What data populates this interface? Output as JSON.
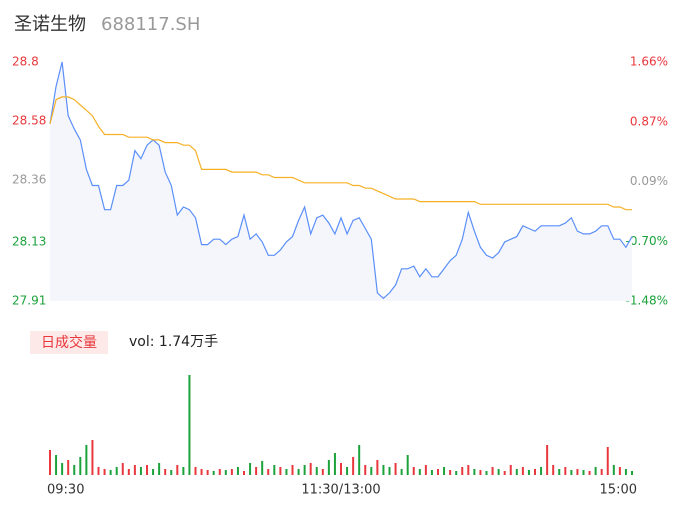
{
  "chart_data": [
    {
      "type": "line",
      "title": "圣诺生物",
      "subtitle": "688117.SH",
      "x": [
        0,
        2.5,
        5,
        7.5,
        10,
        12.5,
        15,
        17.5,
        20,
        22.5,
        25,
        27.5,
        30,
        32.5,
        35,
        37.5,
        40,
        42.5,
        45,
        47.5,
        50,
        52.5,
        55,
        57.5,
        60,
        62.5,
        65,
        67.5,
        70,
        72.5,
        75,
        77.5,
        80,
        82.5,
        85,
        87.5,
        90,
        92.5,
        95,
        97.5,
        100,
        102.5,
        105,
        107.5,
        110,
        112.5,
        115,
        117.5,
        120,
        122.5,
        125,
        127.5,
        130,
        132.5,
        135,
        137.5,
        140,
        142.5,
        145,
        147.5,
        150,
        152.5,
        155,
        157.5,
        160,
        162.5,
        165,
        167.5,
        170,
        172.5,
        175,
        177.5,
        180,
        182.5,
        185,
        187.5,
        190,
        192.5,
        195,
        197.5,
        200,
        202.5,
        205,
        207.5,
        210,
        212.5,
        215,
        217.5,
        220,
        222.5,
        225,
        227.5,
        230,
        232.5,
        235,
        237.5,
        240
      ],
      "series": [
        {
          "name": "price",
          "color": "#5b8ff9",
          "fill": "#f4f6fc",
          "values": [
            28.57,
            28.71,
            28.8,
            28.6,
            28.55,
            28.51,
            28.4,
            28.34,
            28.34,
            28.25,
            28.25,
            28.34,
            28.34,
            28.36,
            28.47,
            28.44,
            28.49,
            28.51,
            28.49,
            28.39,
            28.34,
            28.23,
            28.26,
            28.25,
            28.22,
            28.12,
            28.12,
            28.14,
            28.14,
            28.12,
            28.14,
            28.15,
            28.23,
            28.14,
            28.16,
            28.13,
            28.08,
            28.08,
            28.1,
            28.13,
            28.15,
            28.21,
            28.26,
            28.16,
            28.22,
            28.23,
            28.2,
            28.16,
            28.22,
            28.16,
            28.21,
            28.22,
            28.18,
            28.14,
            27.94,
            27.92,
            27.94,
            27.97,
            28.03,
            28.03,
            28.04,
            28.0,
            28.03,
            28.0,
            28.0,
            28.03,
            28.06,
            28.08,
            28.14,
            28.24,
            28.17,
            28.11,
            28.08,
            28.07,
            28.09,
            28.13,
            28.14,
            28.15,
            28.19,
            28.18,
            28.17,
            28.19,
            28.19,
            28.19,
            28.19,
            28.2,
            28.22,
            28.17,
            28.16,
            28.16,
            28.17,
            28.19,
            28.19,
            28.14,
            28.14,
            28.11,
            28.15
          ]
        },
        {
          "name": "average",
          "color": "#f6b026",
          "values": [
            28.57,
            28.66,
            28.67,
            28.67,
            28.66,
            28.64,
            28.62,
            28.6,
            28.56,
            28.53,
            28.53,
            28.53,
            28.53,
            28.52,
            28.52,
            28.52,
            28.52,
            28.51,
            28.51,
            28.5,
            28.5,
            28.5,
            28.49,
            28.49,
            28.47,
            28.4,
            28.4,
            28.4,
            28.4,
            28.4,
            28.39,
            28.39,
            28.39,
            28.39,
            28.39,
            28.38,
            28.38,
            28.37,
            28.37,
            28.37,
            28.37,
            28.36,
            28.35,
            28.35,
            28.35,
            28.35,
            28.35,
            28.35,
            28.35,
            28.35,
            28.34,
            28.34,
            28.33,
            28.33,
            28.32,
            28.31,
            28.3,
            28.29,
            28.29,
            28.29,
            28.29,
            28.28,
            28.28,
            28.28,
            28.28,
            28.28,
            28.28,
            28.28,
            28.28,
            28.28,
            28.28,
            28.27,
            28.27,
            28.27,
            28.27,
            28.27,
            28.27,
            28.27,
            28.27,
            28.27,
            28.27,
            28.27,
            28.27,
            28.27,
            28.27,
            28.27,
            28.27,
            28.27,
            28.27,
            28.27,
            28.27,
            28.27,
            28.27,
            28.26,
            28.26,
            28.25,
            28.25
          ]
        }
      ],
      "xlim": [
        0,
        240
      ],
      "ylim": [
        27.91,
        28.8
      ],
      "yticks": [
        28.8,
        28.58,
        28.36,
        28.13,
        27.91
      ],
      "y2lim": [
        -1.48,
        1.66
      ],
      "y2ticks": [
        {
          "value": 1.66,
          "label": "1.66%"
        },
        {
          "value": 0.87,
          "label": "0.87%"
        },
        {
          "value": 0.09,
          "label": "0.09%"
        },
        {
          "value": -0.7,
          "label": "-0.70%"
        },
        {
          "value": -1.48,
          "label": "-1.48%"
        }
      ],
      "up_color": "#e8383d",
      "down_color": "#1ca23b",
      "flat_color": "#999999",
      "grid": false
    },
    {
      "type": "bar",
      "title": "日成交量",
      "annotation": "vol: 1.74万手",
      "x": [
        0,
        2.5,
        5,
        7.5,
        10,
        12.5,
        15,
        17.5,
        20,
        22.5,
        25,
        27.5,
        30,
        32.5,
        35,
        37.5,
        40,
        42.5,
        45,
        47.5,
        50,
        52.5,
        55,
        57.5,
        60,
        62.5,
        65,
        67.5,
        70,
        72.5,
        75,
        77.5,
        80,
        82.5,
        85,
        87.5,
        90,
        92.5,
        95,
        97.5,
        100,
        102.5,
        105,
        107.5,
        110,
        112.5,
        115,
        117.5,
        120,
        122.5,
        125,
        127.5,
        130,
        132.5,
        135,
        137.5,
        140,
        142.5,
        145,
        147.5,
        150,
        152.5,
        155,
        157.5,
        160,
        162.5,
        165,
        167.5,
        170,
        172.5,
        175,
        177.5,
        180,
        182.5,
        185,
        187.5,
        190,
        192.5,
        195,
        197.5,
        200,
        202.5,
        205,
        207.5,
        210,
        212.5,
        215,
        217.5,
        220,
        222.5,
        225,
        227.5,
        230,
        232.5,
        235,
        237.5,
        240
      ],
      "values": [
        25,
        20,
        12,
        15,
        10,
        18,
        30,
        35,
        8,
        6,
        5,
        8,
        12,
        6,
        10,
        8,
        10,
        6,
        12,
        6,
        5,
        10,
        8,
        100,
        8,
        6,
        5,
        4,
        6,
        5,
        6,
        8,
        4,
        12,
        8,
        14,
        6,
        10,
        8,
        6,
        10,
        6,
        10,
        12,
        8,
        6,
        15,
        22,
        12,
        8,
        18,
        30,
        10,
        8,
        15,
        10,
        8,
        12,
        6,
        20,
        8,
        6,
        10,
        5,
        6,
        8,
        5,
        4,
        8,
        10,
        6,
        5,
        4,
        8,
        6,
        4,
        10,
        6,
        8,
        5,
        6,
        8,
        30,
        10,
        6,
        8,
        5,
        6,
        5,
        4,
        8,
        6,
        28,
        10,
        8,
        6,
        4
      ],
      "directions": [
        "up",
        "down",
        "down",
        "up",
        "down",
        "down",
        "down",
        "up",
        "up",
        "up",
        "down",
        "down",
        "up",
        "up",
        "up",
        "down",
        "up",
        "down",
        "down",
        "up",
        "down",
        "up",
        "down",
        "down",
        "up",
        "up",
        "up",
        "down",
        "up",
        "down",
        "up",
        "down",
        "up",
        "down",
        "up",
        "down",
        "up",
        "down",
        "up",
        "down",
        "up",
        "down",
        "down",
        "up",
        "down",
        "up",
        "down",
        "down",
        "up",
        "down",
        "up",
        "down",
        "up",
        "down",
        "up",
        "down",
        "down",
        "up",
        "down",
        "down",
        "up",
        "down",
        "up",
        "down",
        "up",
        "down",
        "up",
        "down",
        "up",
        "up",
        "down",
        "up",
        "down",
        "up",
        "down",
        "up",
        "up",
        "down",
        "up",
        "down",
        "up",
        "down",
        "up",
        "up",
        "down",
        "up",
        "down",
        "up",
        "down",
        "up",
        "down",
        "up",
        "up",
        "down",
        "up",
        "down",
        "down"
      ],
      "up_color": "#e8383d",
      "down_color": "#1ca23b",
      "label_color": "#e8383d",
      "label_background": "#fde9e8",
      "xlim": [
        0,
        240
      ],
      "ylim": [
        0,
        100
      ],
      "xticks": [
        {
          "value": 0,
          "label": "09:30"
        },
        {
          "value": 120,
          "label": "11:30/13:00"
        },
        {
          "value": 240,
          "label": "15:00"
        }
      ]
    }
  ]
}
